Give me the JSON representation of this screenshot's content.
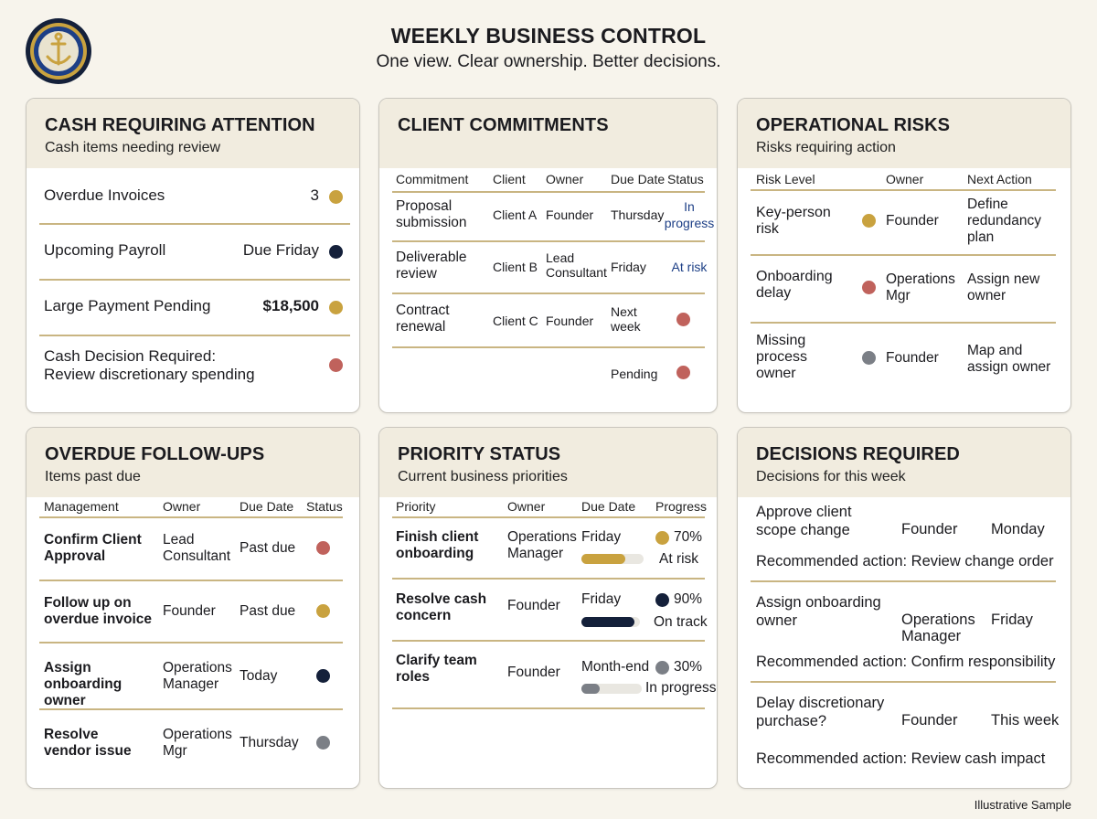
{
  "header": {
    "title": "WEEKLY BUSINESS CONTROL",
    "subtitle": "One view. Clear ownership. Better decisions."
  },
  "colors": {
    "gold": "#c9a23f",
    "navy": "#14203a",
    "red": "#c0625c",
    "gray": "#7b7f86",
    "rule": "#c9b582",
    "card_header": "#f1ecdf"
  },
  "cash": {
    "title": "CASH REQUIRING ATTENTION",
    "subtitle": "Cash items needing review",
    "rows": [
      {
        "label": "Overdue Invoices",
        "value": "3",
        "status": "gold"
      },
      {
        "label": "Upcoming Payroll",
        "value": "Due Friday",
        "status": "navy"
      },
      {
        "label": "Large Payment Pending",
        "value": "$18,500",
        "status": "gold"
      },
      {
        "label": "Cash Decision Required:",
        "label2": "Review discretionary spending",
        "value": "",
        "status": "red"
      }
    ]
  },
  "commitments": {
    "title": "CLIENT COMMITMENTS",
    "headers": [
      "Commitment",
      "Client",
      "Owner",
      "Due Date",
      "Status"
    ],
    "rows": [
      {
        "commitment": "Proposal submission",
        "client": "Client A",
        "owner": "Founder",
        "due": "Thursday",
        "status": "In progress"
      },
      {
        "commitment": "Deliverable review",
        "client": "Client B",
        "owner": "Lead Consultant",
        "due": "Friday",
        "status": "At risk"
      },
      {
        "commitment": "Contract renewal",
        "client": "Client C",
        "owner": "Founder",
        "due": "Next week",
        "status": "red"
      },
      {
        "commitment": "",
        "client": "",
        "owner": "",
        "due": "Pending",
        "status": "red"
      }
    ]
  },
  "risks": {
    "title": "OPERATIONAL RISKS",
    "subtitle": "Risks requiring action",
    "headers": [
      "Risk Level",
      "Owner",
      "Next Action"
    ],
    "rows": [
      {
        "risk": "Key-person risk",
        "status": "gold",
        "owner": "Founder",
        "action": "Define redundancy plan"
      },
      {
        "risk": "Onboarding delay",
        "status": "red",
        "owner": "Operations Mgr",
        "action": "Assign new owner"
      },
      {
        "risk": "Missing process owner",
        "status": "gray",
        "owner": "Founder",
        "action": "Map and assign owner"
      }
    ]
  },
  "followups": {
    "title": "OVERDUE FOLLOW-UPS",
    "subtitle": "Items past due",
    "headers": [
      "Management",
      "Owner",
      "Due Date",
      "Status"
    ],
    "rows": [
      {
        "item": "Confirm Client Approval",
        "owner": "Lead Consultant",
        "due": "Past due",
        "status": "red"
      },
      {
        "item": "Follow up on overdue invoice",
        "owner": "Founder",
        "due": "Past due",
        "status": "gold"
      },
      {
        "item": "Assign onboarding owner",
        "owner": "Operations Manager",
        "due": "Today",
        "status": "navy"
      },
      {
        "item": "Resolve vendor issue",
        "owner": "Operations Mgr",
        "due": "Thursday",
        "status": "gray"
      }
    ]
  },
  "priorities": {
    "title": "PRIORITY STATUS",
    "subtitle": "Current business priorities",
    "headers": [
      "Priority",
      "Owner",
      "Due Date",
      "Progress"
    ],
    "rows": [
      {
        "priority": "Finish client onboarding",
        "owner": "Operations Manager",
        "due": "Friday",
        "percent": "70%",
        "progress": 0.7,
        "color": "gold",
        "state": "At risk"
      },
      {
        "priority": "Resolve cash concern",
        "owner": "Founder",
        "due": "Friday",
        "percent": "90%",
        "progress": 0.9,
        "color": "navy",
        "state": "On track"
      },
      {
        "priority": "Clarify team roles",
        "owner": "Founder",
        "due": "Month-end",
        "percent": "30%",
        "progress": 0.3,
        "color": "gray",
        "state": "In progress"
      }
    ]
  },
  "decisions": {
    "title": "DECISIONS REQUIRED",
    "subtitle": "Decisions for this week",
    "rows": [
      {
        "decision": "Approve client scope change",
        "owner": "Founder",
        "when": "Monday",
        "action": "Recommended action: Review change order"
      },
      {
        "decision": "Assign onboarding owner",
        "owner": "Operations Manager",
        "when": "Friday",
        "action": "Recommended action: Confirm responsibility"
      },
      {
        "decision": "Delay discretionary purchase?",
        "owner": "Founder",
        "when": "This week",
        "action": "Recommended action: Review cash impact"
      }
    ]
  },
  "footer": "Illustrative Sample"
}
